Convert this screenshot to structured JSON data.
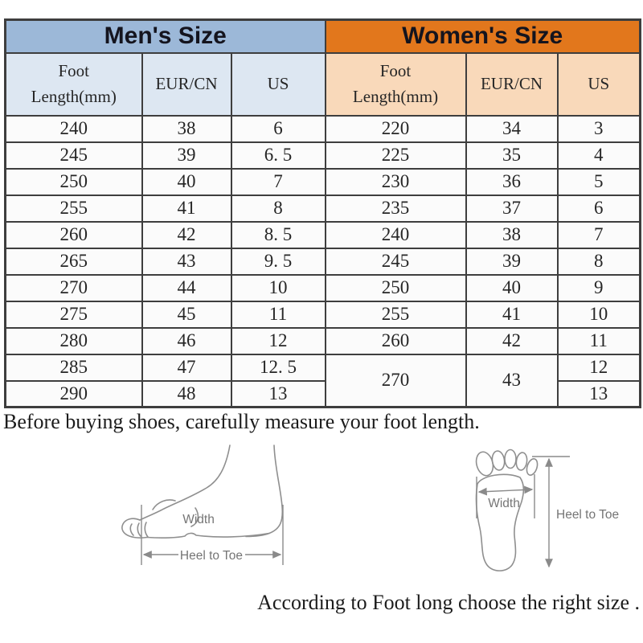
{
  "colors": {
    "men_header_bg": "#9cb8d8",
    "men_subheader_bg": "#dde7f2",
    "women_header_bg": "#e2771c",
    "women_subheader_bg": "#f9d9ba",
    "table_border": "#3e3e3e",
    "cell_bg": "#fbfbfb",
    "header_text": "#14141e",
    "body_text": "#262626",
    "diagram_line": "#8f8f8f",
    "diagram_text": "#757575"
  },
  "table": {
    "men": {
      "title": "Men's Size",
      "columns": [
        "Foot\nLength(mm)",
        "EUR/CN",
        "US"
      ],
      "rows": [
        [
          "240",
          "38",
          "6"
        ],
        [
          "245",
          "39",
          "6. 5"
        ],
        [
          "250",
          "40",
          "7"
        ],
        [
          "255",
          "41",
          "8"
        ],
        [
          "260",
          "42",
          "8. 5"
        ],
        [
          "265",
          "43",
          "9. 5"
        ],
        [
          "270",
          "44",
          "10"
        ],
        [
          "275",
          "45",
          "11"
        ],
        [
          "280",
          "46",
          "12"
        ],
        [
          "285",
          "47",
          "12. 5"
        ],
        [
          "290",
          "48",
          "13"
        ]
      ]
    },
    "women": {
      "title": "Women's Size",
      "columns": [
        "Foot\nLength(mm)",
        "EUR/CN",
        "US"
      ],
      "rows": [
        [
          "220",
          "34",
          "3"
        ],
        [
          "225",
          "35",
          "4"
        ],
        [
          "230",
          "36",
          "5"
        ],
        [
          "235",
          "37",
          "6"
        ],
        [
          "240",
          "38",
          "7"
        ],
        [
          "245",
          "39",
          "8"
        ],
        [
          "250",
          "40",
          "9"
        ],
        [
          "255",
          "41",
          "10"
        ],
        [
          "260",
          "42",
          "11"
        ]
      ],
      "merged_row": {
        "foot": "270",
        "eur": "43",
        "us": [
          "12",
          "13"
        ]
      }
    }
  },
  "notes": {
    "measure_note": "Before buying shoes, carefully measure your foot length.",
    "choose_note": "According to Foot long choose the right size ."
  },
  "diagrams": {
    "side_view": {
      "width_label": "Width",
      "length_label": "Heel to Toe"
    },
    "top_view": {
      "width_label": "Width",
      "length_label": "Heel to Toe"
    }
  }
}
